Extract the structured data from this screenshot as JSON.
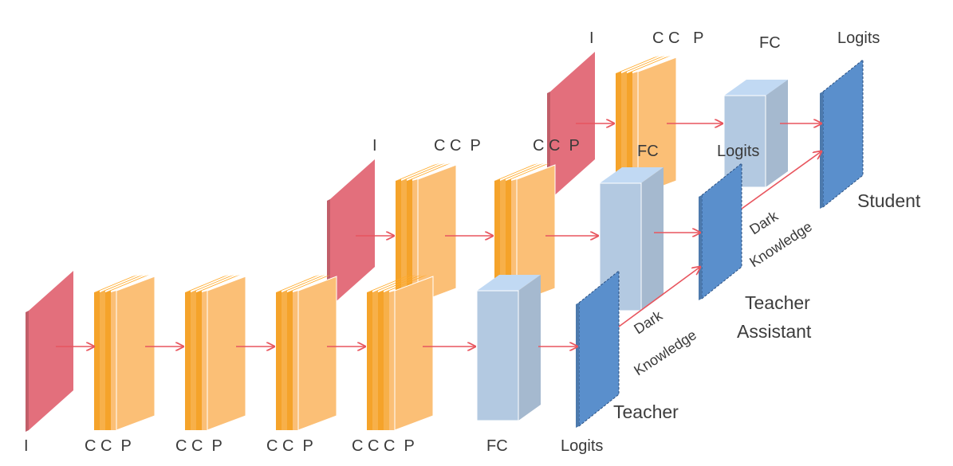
{
  "colors": {
    "input": "#e36f7c",
    "conv_light": "#fbbf76",
    "conv_dark": "#f5a32a",
    "fc": "#b3c9e1",
    "logits": "#5a8fcc",
    "arrow": "#e8555e"
  },
  "teacher": {
    "name": "Teacher",
    "labels": {
      "input": "I",
      "block1": "C C  P",
      "block2": "C C  P",
      "block3": "C C  P",
      "block4": "C C C  P",
      "fc": "FC",
      "logits": "Logits"
    }
  },
  "assistant": {
    "name_line1": "Teacher",
    "name_line2": "Assistant",
    "labels": {
      "input": "I",
      "block1": "C C  P",
      "block2": "C C  P",
      "fc": "FC",
      "logits": "Logits"
    }
  },
  "student": {
    "name": "Student",
    "labels": {
      "input": "I",
      "block1": "C C   P",
      "fc": "FC",
      "logits": "Logits"
    }
  },
  "dark_knowledge": {
    "lower": {
      "line1": "Dark",
      "line2": "Knowledge"
    },
    "upper": {
      "line1": "Dark",
      "line2": "Knowledge"
    }
  }
}
